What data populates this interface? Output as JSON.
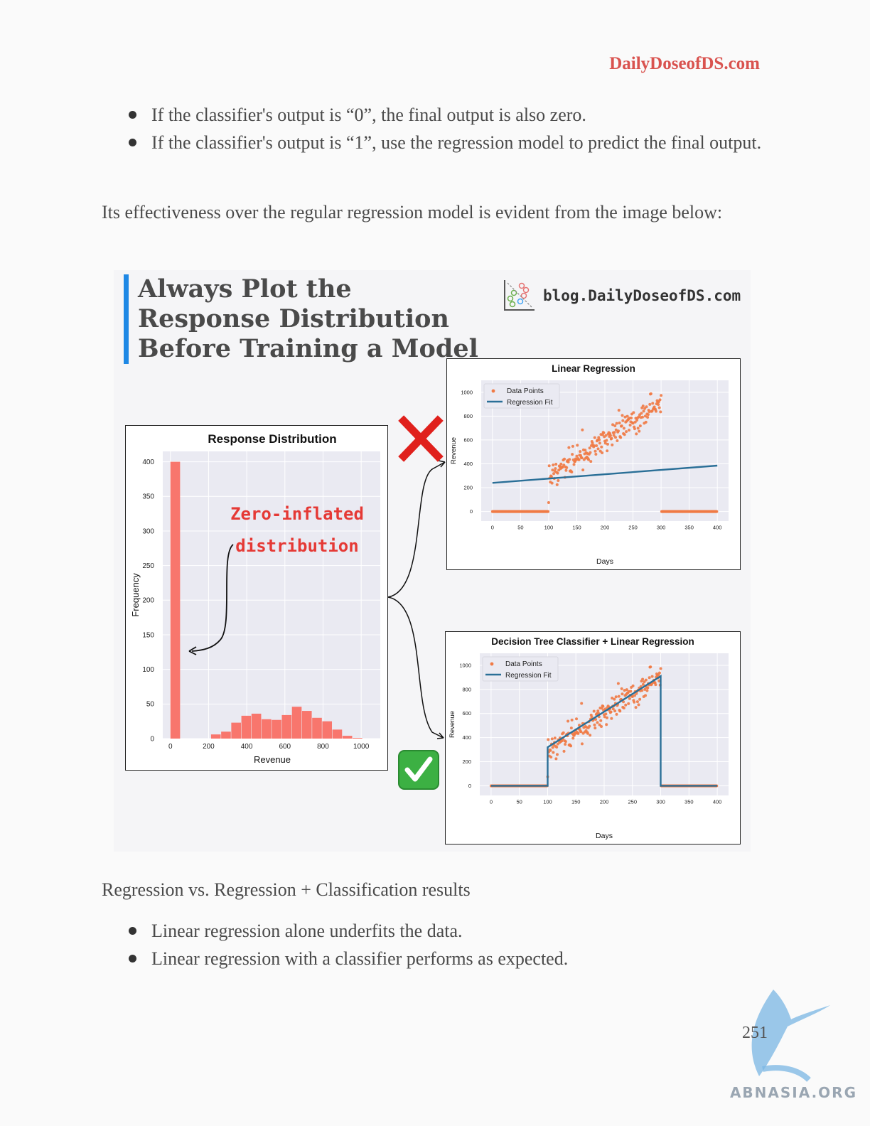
{
  "header": {
    "site": "DailyDoseofDS.com"
  },
  "bullets_top": [
    "If the classifier's output is “0”, the final output is also zero.",
    "If the classifier's output is “1”, use the regression model to predict the final output."
  ],
  "intro": "Its effectiveness over the regular regression model is evident from the image below:",
  "figure": {
    "title": "Always Plot the Response Distribution Before Training a Model",
    "blog": "blog.DailyDoseofDS.com",
    "annotation": [
      "Zero-inflated",
      "distribution"
    ],
    "cross_icon": "cross-mark-icon",
    "check_icon": "check-mark-icon"
  },
  "chart_data": [
    {
      "type": "bar",
      "title": "Response Distribution",
      "xlabel": "Revenue",
      "ylabel": "Frequency",
      "xlim": [
        -40,
        1100
      ],
      "ylim": [
        0,
        415
      ],
      "xticks": [
        0,
        200,
        400,
        600,
        800,
        1000
      ],
      "yticks": [
        0,
        50,
        100,
        150,
        200,
        250,
        300,
        350,
        400
      ],
      "bar_color": "#f8766d",
      "bin_width": 53,
      "bins": [
        0,
        213,
        266,
        319,
        372,
        425,
        478,
        531,
        584,
        637,
        690,
        743,
        796,
        849,
        902,
        955
      ],
      "values": [
        400,
        6,
        10,
        23,
        33,
        36,
        28,
        27,
        34,
        46,
        40,
        30,
        25,
        13,
        4,
        1
      ]
    },
    {
      "type": "scatter",
      "title": "Linear Regression",
      "xlabel": "Days",
      "ylabel": "Revenue",
      "xlim": [
        -20,
        420
      ],
      "ylim": [
        -80,
        1100
      ],
      "xticks": [
        0,
        50,
        100,
        150,
        200,
        250,
        300,
        350,
        400
      ],
      "yticks": [
        0,
        200,
        400,
        600,
        800,
        1000
      ],
      "legend": [
        "Data Points",
        "Regression Fit"
      ],
      "legend_position": "top-left",
      "point_color": "#f07a45",
      "line_color": "#2a6f97",
      "series": [
        {
          "name": "Data Points",
          "x_range": [
            0,
            400
          ],
          "zero_outside": [
            100,
            300
          ],
          "y_trend": [
            [
              100,
              300
            ],
            [
              300,
              900
            ]
          ]
        },
        {
          "name": "Regression Fit",
          "x": [
            0,
            400
          ],
          "y": [
            240,
            385
          ]
        }
      ]
    },
    {
      "type": "scatter",
      "title": "Decision Tree Classifier + Linear Regression",
      "xlabel": "Days",
      "ylabel": "Revenue",
      "xlim": [
        -20,
        420
      ],
      "ylim": [
        -80,
        1100
      ],
      "xticks": [
        0,
        50,
        100,
        150,
        200,
        250,
        300,
        350,
        400
      ],
      "yticks": [
        0,
        200,
        400,
        600,
        800,
        1000
      ],
      "legend": [
        "Data Points",
        "Regression Fit"
      ],
      "legend_position": "top-left",
      "point_color": "#f07a45",
      "line_color": "#2a6f97",
      "series": [
        {
          "name": "Data Points",
          "x_range": [
            0,
            400
          ],
          "zero_outside": [
            100,
            300
          ],
          "y_trend": [
            [
              100,
              300
            ],
            [
              300,
              900
            ]
          ]
        },
        {
          "name": "Regression Fit",
          "x": [
            0,
            100,
            100,
            300,
            300,
            400
          ],
          "y": [
            0,
            0,
            320,
            910,
            0,
            0
          ]
        }
      ]
    }
  ],
  "caption": "Regression vs. Regression + Classification results",
  "bullets_bottom": [
    "Linear regression alone underfits the data.",
    "Linear regression with a classifier performs as expected."
  ],
  "page_number": "251",
  "watermark": "ABNASIA.ORG"
}
